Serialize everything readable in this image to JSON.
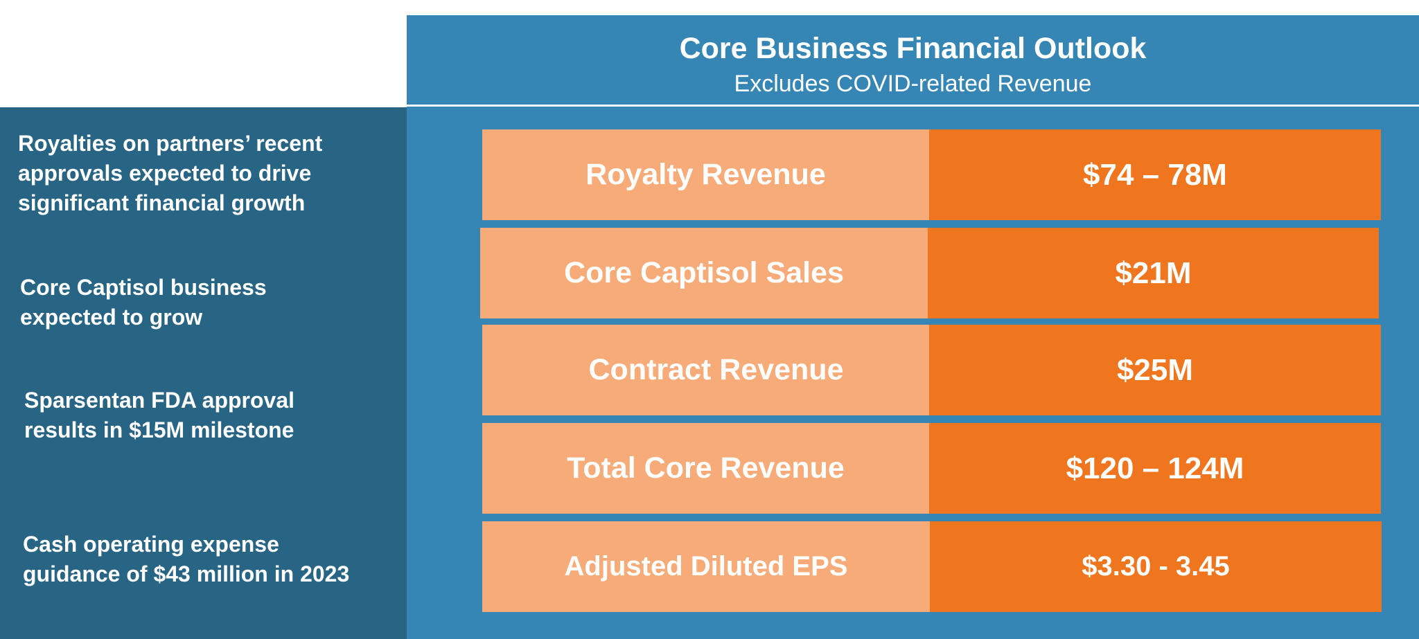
{
  "header": {
    "title": "Core Business Financial Outlook",
    "subtitle": "Excludes COVID-related Revenue"
  },
  "notes": [
    {
      "lines": [
        "Royalties on partners’ recent",
        "approvals expected to drive",
        "significant financial growth"
      ]
    },
    {
      "lines": [
        "Core Captisol business",
        "expected to grow"
      ]
    },
    {
      "lines": [
        "Sparsentan FDA approval",
        "results in $15M milestone"
      ]
    },
    {
      "lines": [
        "Cash operating expense",
        "guidance of $43 million in 2023"
      ]
    }
  ],
  "rows": [
    {
      "label": "Royalty Revenue",
      "value": "$74 – 78M"
    },
    {
      "label": "Core Captisol Sales",
      "value": "$21M"
    },
    {
      "label": "Contract Revenue",
      "value": "$25M"
    },
    {
      "label": "Total Core Revenue",
      "value": "$120 – 124M"
    },
    {
      "label": "Adjusted Diluted EPS",
      "value": "$3.30 - 3.45"
    }
  ],
  "colors": {
    "left_panel": "#286585",
    "right_panel": "#3585b5",
    "label_fill": "#f6ab78",
    "value_fill": "#ef751f",
    "text": "#ffffff"
  }
}
